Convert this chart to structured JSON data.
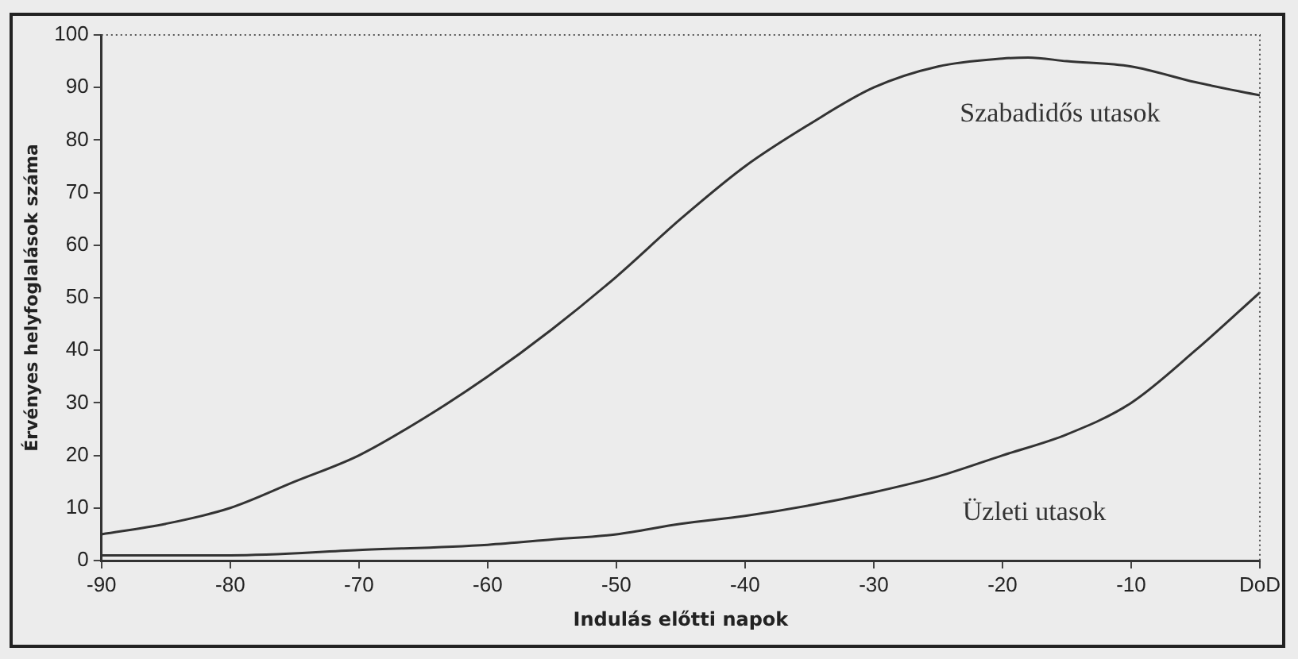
{
  "chart_data": {
    "type": "line",
    "xlabel": "Indulás előtti napok",
    "ylabel": "Érvényes helyfoglalások száma",
    "xlim": [
      -90,
      0
    ],
    "xticks": [
      -90,
      -80,
      -70,
      -60,
      -50,
      -40,
      -30,
      -20,
      -10,
      {
        "value": 0,
        "label": "DoD"
      }
    ],
    "ylim": [
      0,
      100
    ],
    "yticks": [
      0,
      10,
      20,
      30,
      40,
      50,
      60,
      70,
      80,
      90,
      100
    ],
    "grid": false,
    "legend": false,
    "marker": "none",
    "line_style": "solid",
    "series": [
      {
        "name": "Szabadidős utasok",
        "color": "#333333",
        "x": [
          -90,
          -85,
          -80,
          -75,
          -70,
          -65,
          -60,
          -55,
          -50,
          -45,
          -40,
          -35,
          -30,
          -25,
          -20,
          -18,
          -15,
          -10,
          -5,
          0
        ],
        "values": [
          5,
          7,
          10,
          15,
          20,
          27,
          35,
          44,
          54,
          65,
          75,
          83,
          90,
          94,
          95.5,
          95.7,
          95,
          94,
          91,
          88.5
        ]
      },
      {
        "name": "Üzleti utasok",
        "color": "#333333",
        "x": [
          -90,
          -80,
          -70,
          -60,
          -55,
          -50,
          -45,
          -40,
          -35,
          -30,
          -25,
          -20,
          -15,
          -10,
          -5,
          0
        ],
        "values": [
          1,
          1,
          2,
          3,
          4,
          5,
          7,
          8.5,
          10.5,
          13,
          16,
          20,
          24,
          30,
          40,
          51
        ]
      }
    ]
  }
}
